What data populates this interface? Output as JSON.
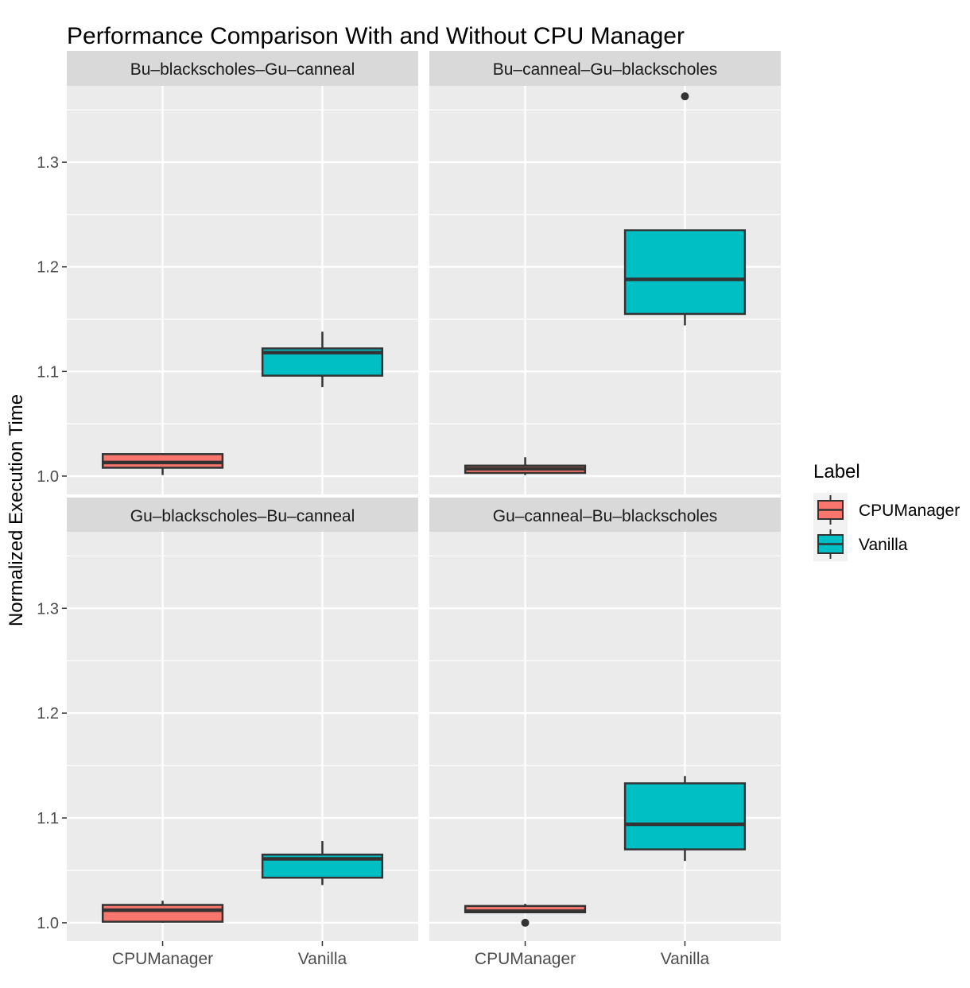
{
  "chart_data": {
    "type": "boxplot",
    "title": "Performance Comparison With and Without CPU Manager",
    "xlabel": "",
    "ylabel": "Normalized Execution Time",
    "categories": [
      "CPUManager",
      "Vanilla"
    ],
    "yticks": [
      "1.0",
      "1.1",
      "1.2",
      "1.3"
    ],
    "ytick_values": [
      1.0,
      1.1,
      1.2,
      1.3
    ],
    "ylim": [
      0.9825,
      1.373
    ],
    "grid": true,
    "legend": {
      "title": "Label",
      "placement": "right",
      "entries": [
        "CPUManager",
        "Vanilla"
      ]
    },
    "colors": {
      "CPUManager": "#F8766D",
      "Vanilla": "#00BFC4",
      "panel": "#EBEBEB",
      "strip": "#D9D9D9",
      "outline": "#333333"
    },
    "facets": [
      {
        "name": "Bu–blackscholes–Gu–canneal",
        "boxes": [
          {
            "label": "CPUManager",
            "low": 1.001,
            "q1": 1.008,
            "median": 1.013,
            "q3": 1.021,
            "high": 1.022,
            "outliers": []
          },
          {
            "label": "Vanilla",
            "low": 1.085,
            "q1": 1.096,
            "median": 1.118,
            "q3": 1.122,
            "high": 1.138,
            "outliers": []
          }
        ]
      },
      {
        "name": "Bu–canneal–Gu–blackscholes",
        "boxes": [
          {
            "label": "CPUManager",
            "low": 1.001,
            "q1": 1.003,
            "median": 1.007,
            "q3": 1.01,
            "high": 1.018,
            "outliers": []
          },
          {
            "label": "Vanilla",
            "low": 1.144,
            "q1": 1.155,
            "median": 1.188,
            "q3": 1.235,
            "high": 1.235,
            "outliers": [
              1.363
            ]
          }
        ]
      },
      {
        "name": "Gu–blackscholes–Bu–canneal",
        "boxes": [
          {
            "label": "CPUManager",
            "low": 1.0,
            "q1": 1.001,
            "median": 1.012,
            "q3": 1.017,
            "high": 1.021,
            "outliers": []
          },
          {
            "label": "Vanilla",
            "low": 1.036,
            "q1": 1.043,
            "median": 1.061,
            "q3": 1.065,
            "high": 1.078,
            "outliers": []
          }
        ]
      },
      {
        "name": "Gu–canneal–Bu–blackscholes",
        "boxes": [
          {
            "label": "CPUManager",
            "low": 1.01,
            "q1": 1.01,
            "median": 1.011,
            "q3": 1.016,
            "high": 1.018,
            "outliers": [
              1.0
            ]
          },
          {
            "label": "Vanilla",
            "low": 1.059,
            "q1": 1.07,
            "median": 1.094,
            "q3": 1.133,
            "high": 1.14,
            "outliers": []
          }
        ]
      }
    ]
  }
}
